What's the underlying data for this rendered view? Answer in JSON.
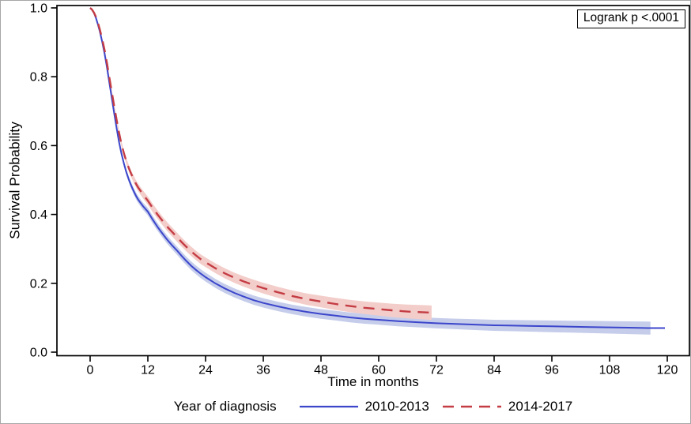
{
  "page": {
    "background": "#ffffff"
  },
  "chart_data": {
    "type": "line",
    "subtype": "kaplan-meier-survival-curves-with-confidence-bands",
    "title": "",
    "xlabel": "Time in months",
    "ylabel": "Survival Probability",
    "annotation": "Logrank p <.0001",
    "legend_title": "Year of diagnosis",
    "legend_position": "bottom",
    "grid": false,
    "xlim": [
      0,
      120
    ],
    "ylim": [
      0.0,
      1.0
    ],
    "x_ticks": [
      0,
      12,
      24,
      36,
      48,
      60,
      72,
      84,
      96,
      108,
      120
    ],
    "y_ticks": [
      "0.0",
      "0.2",
      "0.4",
      "0.6",
      "0.8",
      "1.0"
    ],
    "axis_color": "#000000",
    "series": [
      {
        "name": "2010-2013",
        "line_style": "solid",
        "color": "#3c46cb",
        "band_color": "#c5cdeb",
        "band_end_month": 116.5,
        "band_halfwidth_anchors": [
          [
            0,
            0.002
          ],
          [
            2,
            0.004
          ],
          [
            6,
            0.008
          ],
          [
            12,
            0.011
          ],
          [
            24,
            0.013
          ],
          [
            48,
            0.014
          ],
          [
            72,
            0.015
          ],
          [
            96,
            0.017
          ],
          [
            116.5,
            0.019
          ]
        ],
        "points": [
          [
            0,
            1.0
          ],
          [
            0.4,
            0.995
          ],
          [
            0.8,
            0.985
          ],
          [
            1.2,
            0.971
          ],
          [
            1.6,
            0.953
          ],
          [
            2,
            0.932
          ],
          [
            2.5,
            0.902
          ],
          [
            3,
            0.867
          ],
          [
            3.5,
            0.827
          ],
          [
            4,
            0.783
          ],
          [
            4.5,
            0.738
          ],
          [
            5,
            0.694
          ],
          [
            5.5,
            0.651
          ],
          [
            6,
            0.611
          ],
          [
            6.5,
            0.578
          ],
          [
            7,
            0.549
          ],
          [
            7.5,
            0.524
          ],
          [
            8,
            0.503
          ],
          [
            8.5,
            0.485
          ],
          [
            9,
            0.469
          ],
          [
            9.5,
            0.455
          ],
          [
            10,
            0.443
          ],
          [
            11,
            0.424
          ],
          [
            12,
            0.408
          ],
          [
            13,
            0.385
          ],
          [
            14,
            0.364
          ],
          [
            15,
            0.345
          ],
          [
            16,
            0.327
          ],
          [
            17,
            0.311
          ],
          [
            18,
            0.296
          ],
          [
            19,
            0.28
          ],
          [
            20,
            0.265
          ],
          [
            21,
            0.251
          ],
          [
            22,
            0.239
          ],
          [
            23,
            0.228
          ],
          [
            24,
            0.218
          ],
          [
            26,
            0.2
          ],
          [
            28,
            0.185
          ],
          [
            30,
            0.172
          ],
          [
            32,
            0.161
          ],
          [
            34,
            0.151
          ],
          [
            36,
            0.143
          ],
          [
            39,
            0.133
          ],
          [
            42,
            0.124
          ],
          [
            45,
            0.117
          ],
          [
            48,
            0.111
          ],
          [
            51,
            0.106
          ],
          [
            54,
            0.101
          ],
          [
            57,
            0.097
          ],
          [
            60,
            0.094
          ],
          [
            64,
            0.09
          ],
          [
            68,
            0.087
          ],
          [
            72,
            0.084
          ],
          [
            76,
            0.082
          ],
          [
            80,
            0.08
          ],
          [
            84,
            0.078
          ],
          [
            88,
            0.077
          ],
          [
            92,
            0.076
          ],
          [
            96,
            0.075
          ],
          [
            100,
            0.074
          ],
          [
            104,
            0.073
          ],
          [
            108,
            0.072
          ],
          [
            112,
            0.071
          ],
          [
            116,
            0.07
          ],
          [
            119.5,
            0.07
          ]
        ]
      },
      {
        "name": "2014-2017",
        "line_style": "dashed",
        "color": "#c43c44",
        "band_color": "#f3cdc9",
        "band_end_month": 71,
        "band_halfwidth_anchors": [
          [
            0,
            0.002
          ],
          [
            2,
            0.004
          ],
          [
            6,
            0.008
          ],
          [
            12,
            0.012
          ],
          [
            24,
            0.014
          ],
          [
            48,
            0.017
          ],
          [
            60,
            0.019
          ],
          [
            71,
            0.021
          ]
        ],
        "points": [
          [
            0,
            1.0
          ],
          [
            0.4,
            0.995
          ],
          [
            0.8,
            0.986
          ],
          [
            1.2,
            0.974
          ],
          [
            1.6,
            0.958
          ],
          [
            2,
            0.938
          ],
          [
            2.5,
            0.91
          ],
          [
            3,
            0.877
          ],
          [
            3.5,
            0.84
          ],
          [
            4,
            0.798
          ],
          [
            4.5,
            0.756
          ],
          [
            5,
            0.715
          ],
          [
            5.5,
            0.675
          ],
          [
            6,
            0.638
          ],
          [
            6.5,
            0.606
          ],
          [
            7,
            0.579
          ],
          [
            7.5,
            0.556
          ],
          [
            8,
            0.536
          ],
          [
            8.5,
            0.519
          ],
          [
            9,
            0.504
          ],
          [
            9.5,
            0.49
          ],
          [
            10,
            0.478
          ],
          [
            11,
            0.458
          ],
          [
            12,
            0.44
          ],
          [
            13,
            0.419
          ],
          [
            14,
            0.4
          ],
          [
            15,
            0.382
          ],
          [
            16,
            0.365
          ],
          [
            17,
            0.35
          ],
          [
            18,
            0.335
          ],
          [
            19,
            0.32
          ],
          [
            20,
            0.306
          ],
          [
            21,
            0.293
          ],
          [
            22,
            0.281
          ],
          [
            23,
            0.27
          ],
          [
            24,
            0.261
          ],
          [
            26,
            0.244
          ],
          [
            28,
            0.229
          ],
          [
            30,
            0.216
          ],
          [
            32,
            0.205
          ],
          [
            34,
            0.195
          ],
          [
            36,
            0.186
          ],
          [
            39,
            0.174
          ],
          [
            42,
            0.163
          ],
          [
            45,
            0.154
          ],
          [
            48,
            0.147
          ],
          [
            51,
            0.14
          ],
          [
            54,
            0.134
          ],
          [
            57,
            0.129
          ],
          [
            60,
            0.125
          ],
          [
            63,
            0.121
          ],
          [
            66,
            0.118
          ],
          [
            69,
            0.116
          ],
          [
            71.8,
            0.114
          ]
        ]
      }
    ]
  }
}
